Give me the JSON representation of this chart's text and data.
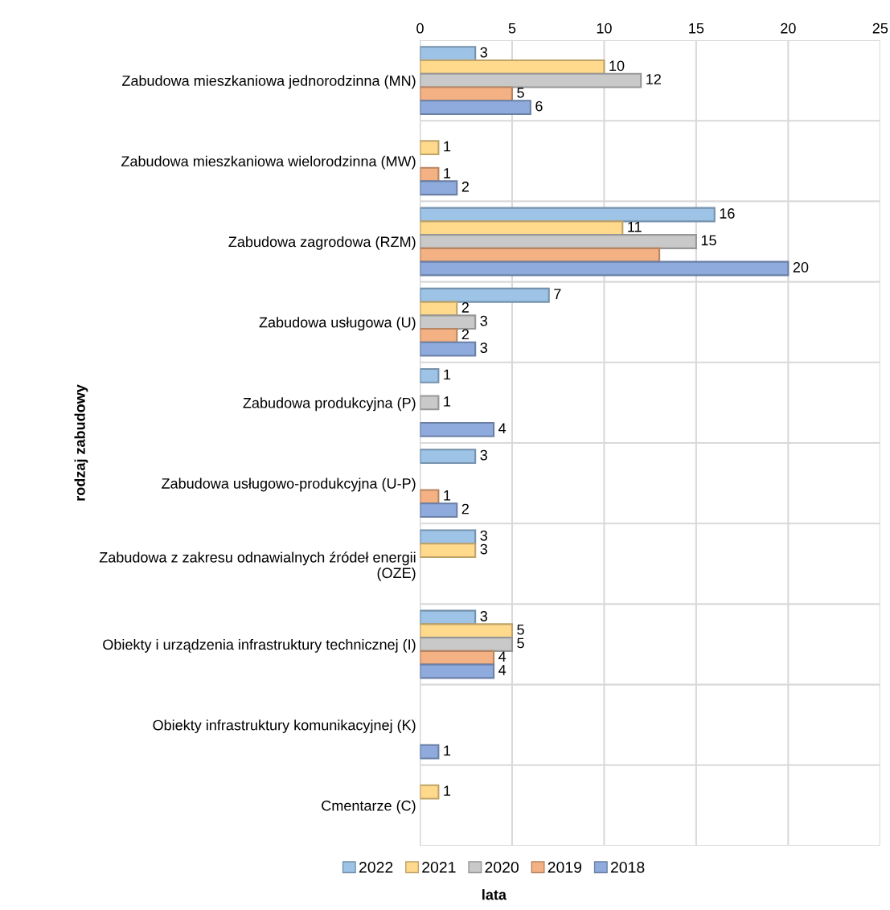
{
  "chart_data": {
    "type": "bar",
    "orientation": "horizontal",
    "xlabel": "lata",
    "ylabel": "rodzaj zabudowy",
    "categories": [
      "Zabudowa mieszkaniowa jednorodzinna (MN)",
      "Zabudowa mieszkaniowa wielorodzinna (MW)",
      "Zabudowa zagrodowa (RZM)",
      "Zabudowa usługowa (U)",
      "Zabudowa produkcyjna (P)",
      "Zabudowa usługowo-produkcyjna (U-P)",
      "Zabudowa z zakresu odnawialnych źródeł energii\n(OZE)",
      "Obiekty i urządzenia infrastruktury technicznej (I)",
      "Obiekty infrastruktury komunikacyjnej (K)",
      "Cmentarze (C)"
    ],
    "series": [
      {
        "name": "2022",
        "color": "#9dc3e6",
        "values": [
          3,
          null,
          16,
          7,
          1,
          3,
          3,
          3,
          null,
          null
        ],
        "value_labels": [
          "3",
          null,
          "16",
          "7",
          "1",
          "3",
          "3",
          "3",
          null,
          null
        ]
      },
      {
        "name": "2021",
        "color": "#ffd98c",
        "values": [
          10,
          1,
          11,
          2,
          null,
          null,
          3,
          5,
          null,
          1
        ],
        "value_labels": [
          "10",
          "1",
          "11",
          "2",
          null,
          null,
          "3",
          "5",
          null,
          "1"
        ]
      },
      {
        "name": "2020",
        "color": "#c9c9c9",
        "values": [
          12,
          null,
          15,
          3,
          1,
          null,
          null,
          5,
          null,
          null
        ],
        "value_labels": [
          "12",
          null,
          "15",
          "3",
          "1",
          null,
          null,
          "5",
          null,
          null
        ]
      },
      {
        "name": "2019",
        "color": "#f4b183",
        "values": [
          5,
          1,
          13,
          2,
          null,
          1,
          null,
          4,
          null,
          null
        ],
        "value_labels": [
          "5",
          "1",
          null,
          "2",
          null,
          "1",
          null,
          "4",
          null,
          null
        ]
      },
      {
        "name": "2018",
        "color": "#8faadc",
        "values": [
          6,
          2,
          20,
          3,
          4,
          2,
          null,
          4,
          1,
          null
        ],
        "value_labels": [
          "6",
          "2",
          "20",
          "3",
          "4",
          "2",
          null,
          "4",
          "1",
          null
        ]
      }
    ],
    "xlim": [
      0,
      25
    ],
    "xticks": [
      0,
      5,
      10,
      15,
      20,
      25
    ],
    "grid": true,
    "legend": "bottom"
  }
}
